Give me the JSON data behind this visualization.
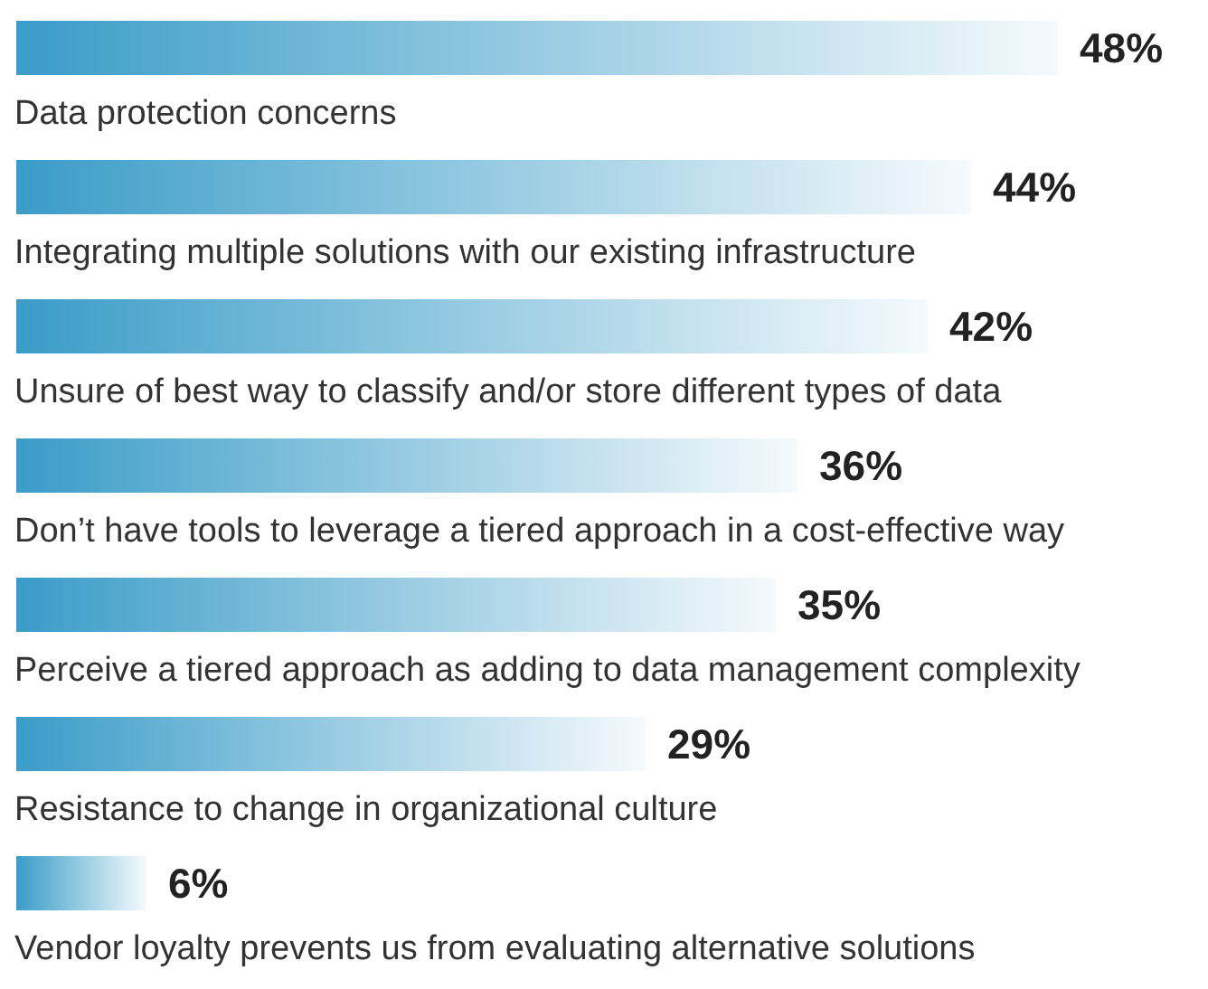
{
  "chart_data": {
    "type": "bar",
    "orientation": "horizontal",
    "categories": [
      "Data protection concerns",
      "Integrating multiple solutions with our existing infrastructure",
      "Unsure of best way to classify and/or store different types of data",
      "Don’t have tools to leverage a tiered approach in a cost-effective way",
      "Perceive a tiered approach as adding to data management complexity",
      "Resistance to change in organizational culture",
      "Vendor loyalty prevents us from evaluating alternative solutions"
    ],
    "values": [
      48,
      44,
      42,
      36,
      35,
      29,
      6
    ],
    "value_labels": [
      "48%",
      "44%",
      "42%",
      "36%",
      "35%",
      "29%",
      "6%"
    ],
    "color": "#3a9cc8"
  }
}
